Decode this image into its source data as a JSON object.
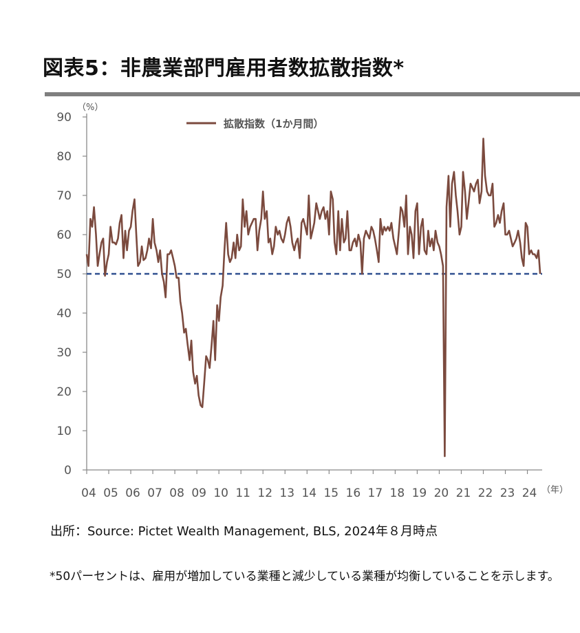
{
  "title": "図表5：非農業部門雇用者数拡散指数*",
  "source": "出所：Source: Pictet Wealth Management, BLS, 2024年８月時点",
  "note": "*50パーセントは、雇用が増加している業種と減少している業種が均衡していることを示します。",
  "colors": {
    "series": "#7b4a3e",
    "reference": "#2f4f8f",
    "axis": "#888888",
    "rule": "#7f7f7f"
  },
  "chart_data": {
    "type": "line",
    "title": "",
    "xlabel": "（年）",
    "ylabel": "（%）",
    "ylim": [
      0,
      90
    ],
    "yticks": [
      0,
      10,
      20,
      30,
      40,
      50,
      60,
      70,
      80,
      90
    ],
    "xlim": [
      2004,
      2024.67
    ],
    "xticks": [
      "04",
      "05",
      "06",
      "07",
      "08",
      "09",
      "10",
      "11",
      "12",
      "13",
      "14",
      "15",
      "16",
      "17",
      "18",
      "19",
      "20",
      "21",
      "22",
      "23",
      "24"
    ],
    "legend": {
      "position": "top-center",
      "entries": [
        "拡散指数（1か月間）"
      ]
    },
    "grid": false,
    "reference_line": {
      "y": 50,
      "style": "dashed"
    },
    "series": [
      {
        "name": "拡散指数（1か月間）",
        "points": [
          [
            2004.0,
            55
          ],
          [
            2004.08,
            52
          ],
          [
            2004.17,
            64
          ],
          [
            2004.25,
            62
          ],
          [
            2004.33,
            67
          ],
          [
            2004.42,
            60
          ],
          [
            2004.5,
            52
          ],
          [
            2004.58,
            55
          ],
          [
            2004.67,
            58
          ],
          [
            2004.75,
            59
          ],
          [
            2004.83,
            49.5
          ],
          [
            2004.92,
            53
          ],
          [
            2005.0,
            55
          ],
          [
            2005.08,
            62
          ],
          [
            2005.17,
            58
          ],
          [
            2005.25,
            58
          ],
          [
            2005.33,
            57.5
          ],
          [
            2005.42,
            59
          ],
          [
            2005.5,
            63
          ],
          [
            2005.58,
            65
          ],
          [
            2005.67,
            54
          ],
          [
            2005.75,
            61
          ],
          [
            2005.83,
            56
          ],
          [
            2005.92,
            61
          ],
          [
            2006.0,
            62
          ],
          [
            2006.08,
            66
          ],
          [
            2006.17,
            69
          ],
          [
            2006.25,
            60
          ],
          [
            2006.33,
            52
          ],
          [
            2006.42,
            53
          ],
          [
            2006.5,
            57
          ],
          [
            2006.58,
            53.5
          ],
          [
            2006.67,
            54
          ],
          [
            2006.75,
            56
          ],
          [
            2006.83,
            59
          ],
          [
            2006.92,
            56.5
          ],
          [
            2007.0,
            64
          ],
          [
            2007.08,
            58
          ],
          [
            2007.17,
            56
          ],
          [
            2007.25,
            53
          ],
          [
            2007.33,
            56
          ],
          [
            2007.42,
            50
          ],
          [
            2007.5,
            48
          ],
          [
            2007.58,
            44
          ],
          [
            2007.67,
            55
          ],
          [
            2007.75,
            55
          ],
          [
            2007.83,
            56
          ],
          [
            2007.92,
            54
          ],
          [
            2008.0,
            52
          ],
          [
            2008.08,
            49
          ],
          [
            2008.17,
            49
          ],
          [
            2008.25,
            43
          ],
          [
            2008.33,
            40
          ],
          [
            2008.42,
            35
          ],
          [
            2008.5,
            36
          ],
          [
            2008.58,
            32
          ],
          [
            2008.67,
            28
          ],
          [
            2008.75,
            33
          ],
          [
            2008.83,
            25
          ],
          [
            2008.92,
            22
          ],
          [
            2009.0,
            24
          ],
          [
            2009.08,
            19
          ],
          [
            2009.17,
            16.5
          ],
          [
            2009.25,
            16
          ],
          [
            2009.33,
            22
          ],
          [
            2009.42,
            29
          ],
          [
            2009.5,
            28
          ],
          [
            2009.58,
            26
          ],
          [
            2009.67,
            32
          ],
          [
            2009.75,
            38
          ],
          [
            2009.83,
            28
          ],
          [
            2009.92,
            42
          ],
          [
            2010.0,
            38
          ],
          [
            2010.08,
            44
          ],
          [
            2010.17,
            47
          ],
          [
            2010.25,
            56
          ],
          [
            2010.33,
            63
          ],
          [
            2010.42,
            55
          ],
          [
            2010.5,
            53
          ],
          [
            2010.58,
            54
          ],
          [
            2010.67,
            58
          ],
          [
            2010.75,
            54
          ],
          [
            2010.83,
            60
          ],
          [
            2010.92,
            56
          ],
          [
            2011.0,
            57
          ],
          [
            2011.08,
            69
          ],
          [
            2011.17,
            62
          ],
          [
            2011.25,
            66
          ],
          [
            2011.33,
            60
          ],
          [
            2011.42,
            62
          ],
          [
            2011.5,
            63
          ],
          [
            2011.58,
            64
          ],
          [
            2011.67,
            64
          ],
          [
            2011.75,
            56
          ],
          [
            2011.83,
            61
          ],
          [
            2011.92,
            64
          ],
          [
            2012.0,
            71
          ],
          [
            2012.08,
            64
          ],
          [
            2012.17,
            66
          ],
          [
            2012.25,
            58
          ],
          [
            2012.33,
            59
          ],
          [
            2012.42,
            55
          ],
          [
            2012.5,
            57
          ],
          [
            2012.58,
            62
          ],
          [
            2012.67,
            60
          ],
          [
            2012.75,
            61
          ],
          [
            2012.83,
            59
          ],
          [
            2012.92,
            58
          ],
          [
            2013.0,
            60
          ],
          [
            2013.08,
            63
          ],
          [
            2013.17,
            64.5
          ],
          [
            2013.25,
            62
          ],
          [
            2013.33,
            58
          ],
          [
            2013.42,
            56
          ],
          [
            2013.5,
            58
          ],
          [
            2013.58,
            59
          ],
          [
            2013.67,
            54
          ],
          [
            2013.75,
            63
          ],
          [
            2013.83,
            64
          ],
          [
            2013.92,
            62
          ],
          [
            2014.0,
            60
          ],
          [
            2014.08,
            70
          ],
          [
            2014.17,
            59
          ],
          [
            2014.25,
            61
          ],
          [
            2014.33,
            63
          ],
          [
            2014.42,
            68
          ],
          [
            2014.5,
            66
          ],
          [
            2014.58,
            64
          ],
          [
            2014.67,
            66
          ],
          [
            2014.75,
            67
          ],
          [
            2014.83,
            64
          ],
          [
            2014.92,
            66
          ],
          [
            2015.0,
            60
          ],
          [
            2015.08,
            71
          ],
          [
            2015.17,
            69
          ],
          [
            2015.25,
            58
          ],
          [
            2015.33,
            55
          ],
          [
            2015.42,
            66
          ],
          [
            2015.5,
            56
          ],
          [
            2015.58,
            64
          ],
          [
            2015.67,
            58
          ],
          [
            2015.75,
            59
          ],
          [
            2015.83,
            66
          ],
          [
            2015.92,
            56
          ],
          [
            2016.0,
            56
          ],
          [
            2016.08,
            58
          ],
          [
            2016.17,
            59
          ],
          [
            2016.25,
            57
          ],
          [
            2016.33,
            60
          ],
          [
            2016.42,
            58
          ],
          [
            2016.5,
            50
          ],
          [
            2016.58,
            59
          ],
          [
            2016.67,
            61
          ],
          [
            2016.75,
            60
          ],
          [
            2016.83,
            59
          ],
          [
            2016.92,
            62
          ],
          [
            2017.0,
            61
          ],
          [
            2017.08,
            59
          ],
          [
            2017.17,
            56
          ],
          [
            2017.25,
            53
          ],
          [
            2017.33,
            64
          ],
          [
            2017.42,
            60
          ],
          [
            2017.5,
            62
          ],
          [
            2017.58,
            61
          ],
          [
            2017.67,
            62
          ],
          [
            2017.75,
            61
          ],
          [
            2017.83,
            63
          ],
          [
            2017.92,
            59
          ],
          [
            2018.0,
            57
          ],
          [
            2018.08,
            55
          ],
          [
            2018.17,
            61
          ],
          [
            2018.25,
            67
          ],
          [
            2018.33,
            66
          ],
          [
            2018.42,
            62
          ],
          [
            2018.5,
            70
          ],
          [
            2018.58,
            55
          ],
          [
            2018.67,
            62
          ],
          [
            2018.75,
            60
          ],
          [
            2018.83,
            54
          ],
          [
            2018.92,
            66
          ],
          [
            2019.0,
            68
          ],
          [
            2019.08,
            55
          ],
          [
            2019.17,
            62
          ],
          [
            2019.25,
            64
          ],
          [
            2019.33,
            56
          ],
          [
            2019.42,
            55
          ],
          [
            2019.5,
            61
          ],
          [
            2019.58,
            57
          ],
          [
            2019.67,
            59
          ],
          [
            2019.75,
            56
          ],
          [
            2019.83,
            61
          ],
          [
            2019.92,
            58
          ],
          [
            2020.0,
            57
          ],
          [
            2020.08,
            55
          ],
          [
            2020.17,
            52
          ],
          [
            2020.25,
            3.5
          ],
          [
            2020.33,
            67
          ],
          [
            2020.42,
            75
          ],
          [
            2020.5,
            62
          ],
          [
            2020.58,
            73
          ],
          [
            2020.67,
            76
          ],
          [
            2020.75,
            70
          ],
          [
            2020.83,
            66
          ],
          [
            2020.92,
            60
          ],
          [
            2021.0,
            62
          ],
          [
            2021.08,
            76
          ],
          [
            2021.17,
            71
          ],
          [
            2021.25,
            64
          ],
          [
            2021.33,
            68
          ],
          [
            2021.42,
            73
          ],
          [
            2021.5,
            72
          ],
          [
            2021.58,
            71
          ],
          [
            2021.67,
            73
          ],
          [
            2021.75,
            74
          ],
          [
            2021.83,
            68
          ],
          [
            2021.92,
            71
          ],
          [
            2022.0,
            84.5
          ],
          [
            2022.08,
            75
          ],
          [
            2022.17,
            71
          ],
          [
            2022.25,
            70
          ],
          [
            2022.33,
            70
          ],
          [
            2022.42,
            73
          ],
          [
            2022.5,
            62
          ],
          [
            2022.58,
            63
          ],
          [
            2022.67,
            65
          ],
          [
            2022.75,
            63
          ],
          [
            2022.83,
            66
          ],
          [
            2022.92,
            68
          ],
          [
            2023.0,
            60
          ],
          [
            2023.08,
            60
          ],
          [
            2023.17,
            61
          ],
          [
            2023.25,
            59
          ],
          [
            2023.33,
            57
          ],
          [
            2023.42,
            58
          ],
          [
            2023.5,
            59
          ],
          [
            2023.58,
            61
          ],
          [
            2023.67,
            58
          ],
          [
            2023.75,
            54
          ],
          [
            2023.83,
            52
          ],
          [
            2023.92,
            63
          ],
          [
            2024.0,
            62
          ],
          [
            2024.08,
            55
          ],
          [
            2024.17,
            56
          ],
          [
            2024.25,
            55
          ],
          [
            2024.33,
            55
          ],
          [
            2024.42,
            54
          ],
          [
            2024.5,
            56
          ],
          [
            2024.58,
            50
          ]
        ]
      }
    ]
  }
}
